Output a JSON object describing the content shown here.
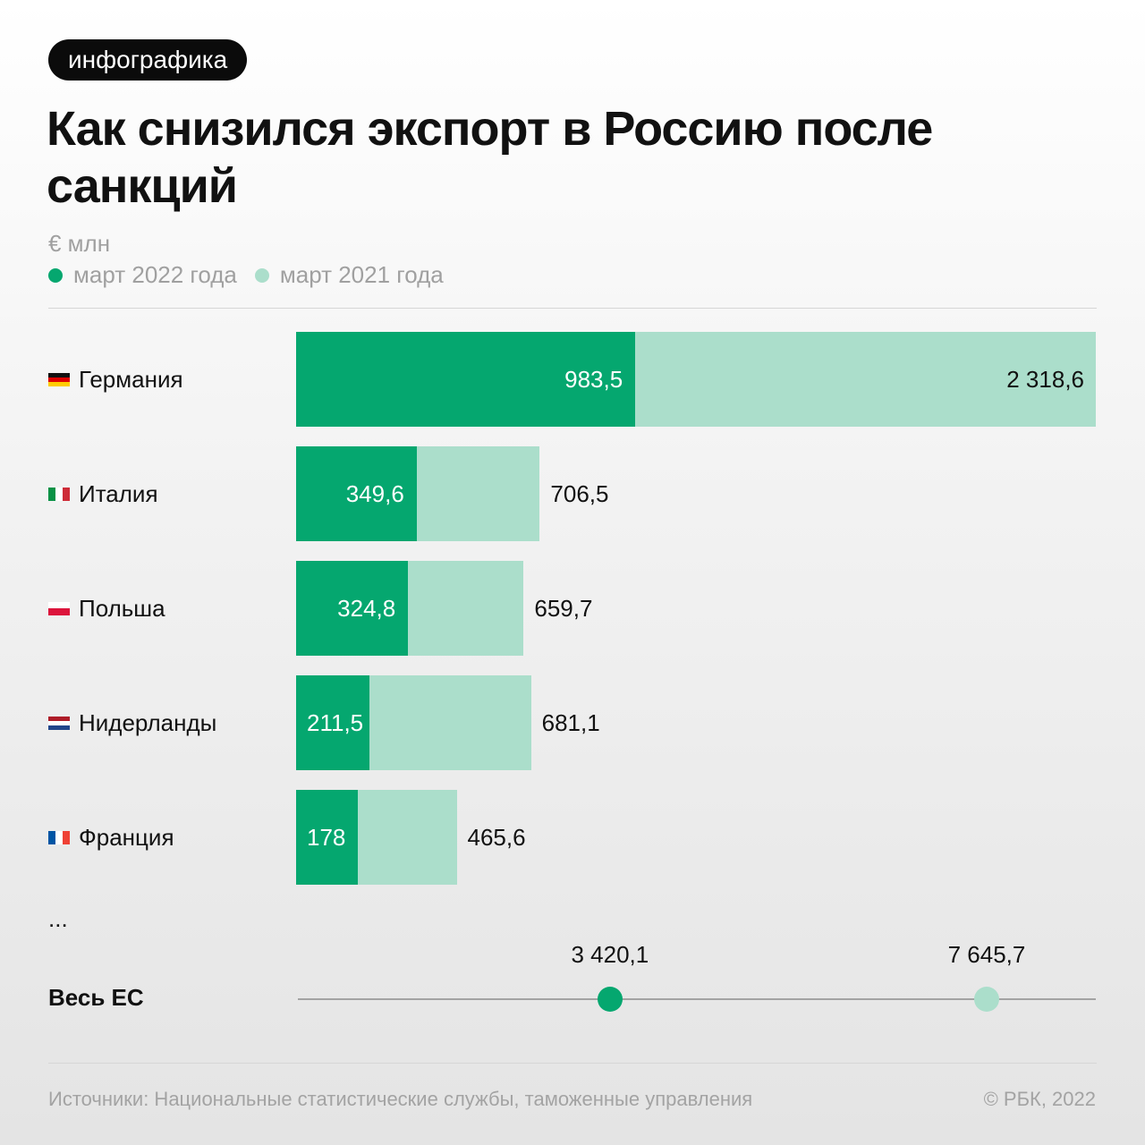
{
  "badge": "инфографика",
  "title": "Как снизился экспорт в Россию после санкций",
  "unit": "€ млн",
  "legend": [
    {
      "label": "март 2022 года",
      "color": "#05a76f"
    },
    {
      "label": "март 2021 года",
      "color": "#abdecb"
    }
  ],
  "chart_data": {
    "type": "bar",
    "orientation": "horizontal",
    "overlay": true,
    "title": "Как снизился экспорт в Россию после санкций",
    "unit": "€ млн",
    "categories": [
      "Германия",
      "Италия",
      "Польша",
      "Нидерланды",
      "Франция"
    ],
    "flags": [
      "germany-flag",
      "italy-flag",
      "poland-flag",
      "netherlands-flag",
      "france-flag"
    ],
    "series": [
      {
        "name": "март 2022 года",
        "color": "#05a76f",
        "values": [
          983.5,
          349.6,
          324.8,
          211.5,
          178
        ],
        "labels": [
          "983,5",
          "349,6",
          "324,8",
          "211,5",
          "178"
        ]
      },
      {
        "name": "март 2021 года",
        "color": "#abdecb",
        "values": [
          2318.6,
          706.5,
          659.7,
          681.1,
          465.6
        ],
        "labels": [
          "2 318,6",
          "706,5",
          "659,7",
          "681,1",
          "465,6"
        ]
      }
    ],
    "xlim": [
      0,
      2318.6
    ],
    "grid": false,
    "legend_position": "top-left",
    "ellipsis": "...",
    "total": {
      "label": "Весь ЕС",
      "values": [
        3420.1,
        7645.7
      ],
      "labels": [
        "3 420,1",
        "7 645,7"
      ],
      "xlim": [
        0,
        8870
      ]
    }
  },
  "footer": {
    "source": "Источники: Национальные статистические службы, таможенные управления",
    "copyright": "© РБК, 2022"
  }
}
